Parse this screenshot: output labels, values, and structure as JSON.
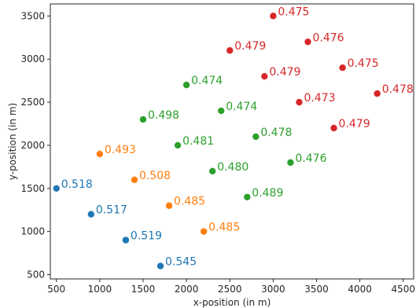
{
  "chart_data": {
    "type": "scatter",
    "xlabel": "x-position (in m)",
    "ylabel": "y-position (in m)",
    "xlim": [
      430,
      4620
    ],
    "ylim": [
      450,
      3640
    ],
    "xticks": [
      500,
      1000,
      1500,
      2000,
      2500,
      3000,
      3500,
      4000,
      4500
    ],
    "yticks": [
      500,
      1000,
      1500,
      2000,
      2500,
      3000,
      3500
    ],
    "grid": false,
    "legend": "none",
    "series": [
      {
        "color": "#1f77b4",
        "points": [
          {
            "x": 500,
            "y": 1500,
            "label": "0.518"
          },
          {
            "x": 900,
            "y": 1200,
            "label": "0.517"
          },
          {
            "x": 1300,
            "y": 900,
            "label": "0.519"
          },
          {
            "x": 1700,
            "y": 600,
            "label": "0.545"
          }
        ]
      },
      {
        "color": "#ff7f0e",
        "points": [
          {
            "x": 1000,
            "y": 1900,
            "label": "0.493"
          },
          {
            "x": 1400,
            "y": 1600,
            "label": "0.508"
          },
          {
            "x": 1800,
            "y": 1300,
            "label": "0.485"
          },
          {
            "x": 2200,
            "y": 1000,
            "label": "0.485"
          }
        ]
      },
      {
        "color": "#2ca02c",
        "points": [
          {
            "x": 1500,
            "y": 2300,
            "label": "0.498"
          },
          {
            "x": 1900,
            "y": 2000,
            "label": "0.481"
          },
          {
            "x": 2000,
            "y": 2700,
            "label": "0.474"
          },
          {
            "x": 2300,
            "y": 1700,
            "label": "0.480"
          },
          {
            "x": 2400,
            "y": 2400,
            "label": "0.474"
          },
          {
            "x": 2700,
            "y": 1400,
            "label": "0.489"
          },
          {
            "x": 2800,
            "y": 2100,
            "label": "0.478"
          },
          {
            "x": 3200,
            "y": 1800,
            "label": "0.476"
          }
        ]
      },
      {
        "color": "#d62728",
        "points": [
          {
            "x": 2500,
            "y": 3100,
            "label": "0.479"
          },
          {
            "x": 2900,
            "y": 2800,
            "label": "0.479"
          },
          {
            "x": 3000,
            "y": 3500,
            "label": "0.475"
          },
          {
            "x": 3300,
            "y": 2500,
            "label": "0.473"
          },
          {
            "x": 3400,
            "y": 3200,
            "label": "0.476"
          },
          {
            "x": 3700,
            "y": 2200,
            "label": "0.479"
          },
          {
            "x": 3800,
            "y": 2900,
            "label": "0.475"
          },
          {
            "x": 4200,
            "y": 2600,
            "label": "0.478"
          }
        ]
      }
    ]
  }
}
